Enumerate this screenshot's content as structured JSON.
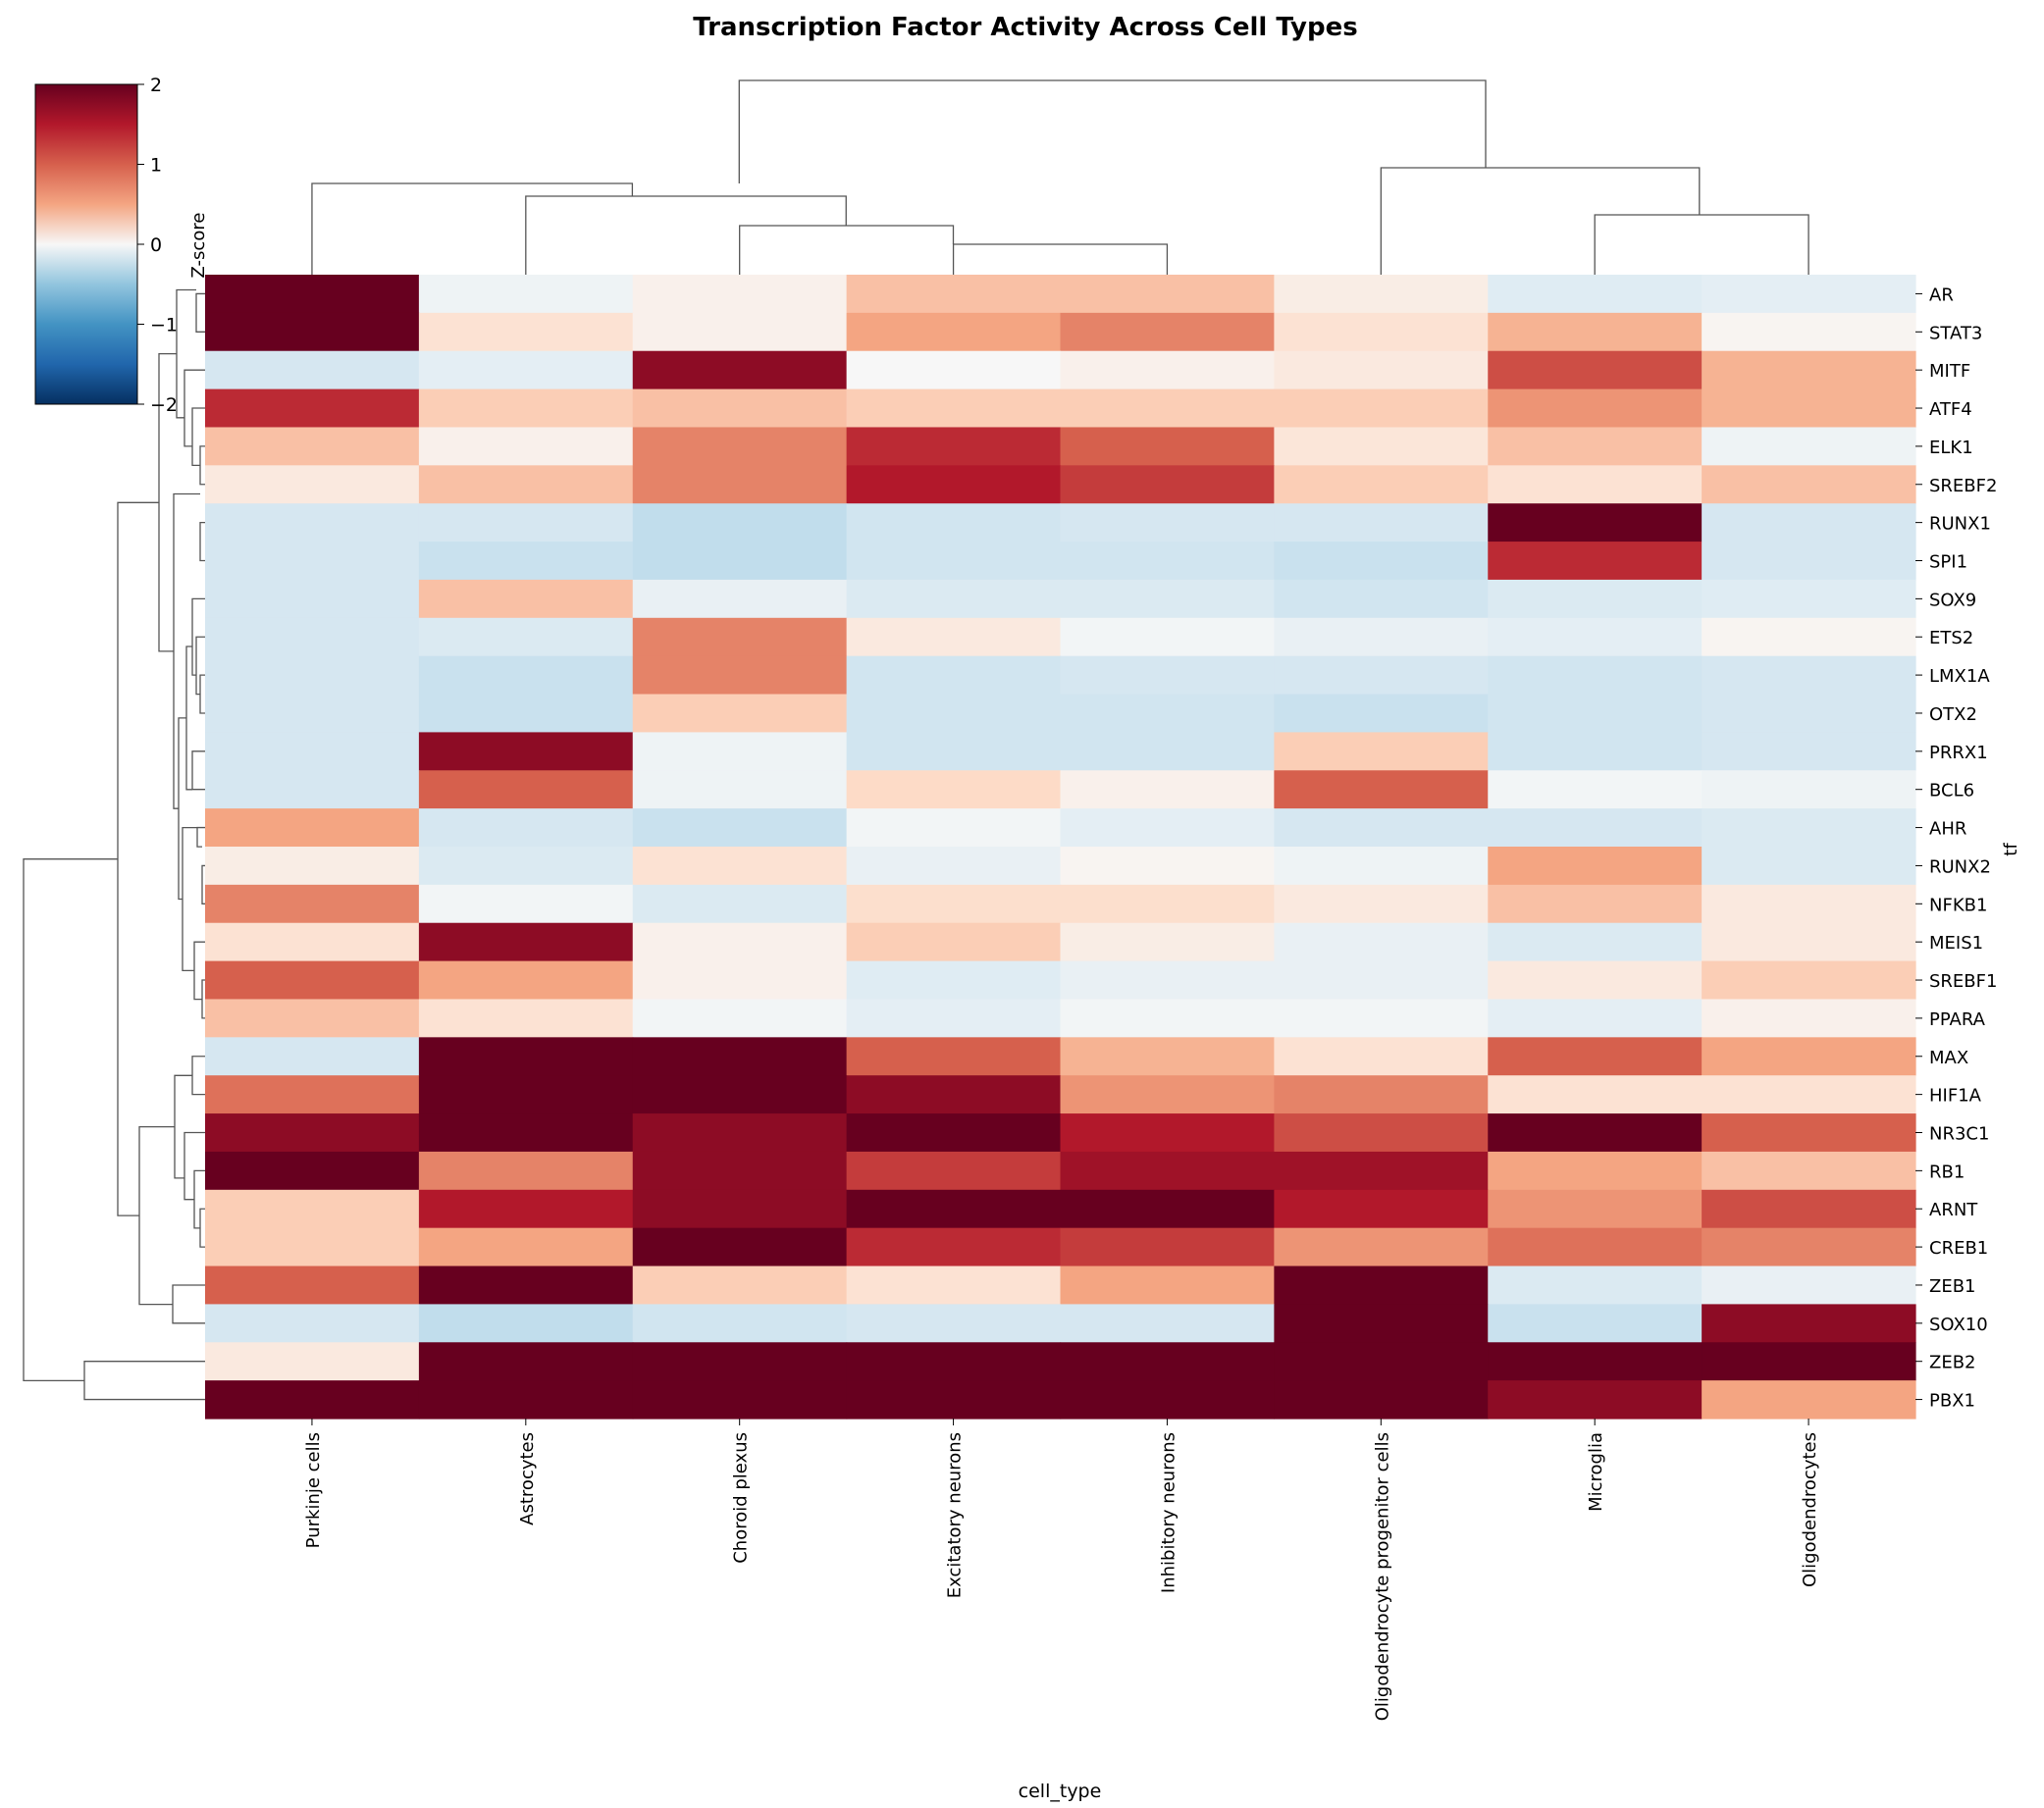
{
  "chart_data": {
    "type": "heatmap",
    "title": "Transcription Factor Activity Across Cell Types",
    "xlabel": "cell_type",
    "ylabel": "tf",
    "colorbar": {
      "label": "Z-score",
      "range": [
        -2,
        2
      ],
      "ticks": [
        "2",
        "1",
        "0",
        "−1",
        "−2"
      ],
      "colormap": "RdBu_r"
    },
    "columns": [
      "Purkinje cells",
      "Astrocytes",
      "Choroid plexus",
      "Excitatory neurons",
      "Inhibitory neurons",
      "Oligodendrocyte progenitor cells",
      "Microglia",
      "Oligodendrocytes"
    ],
    "rows": [
      "AR",
      "STAT3",
      "MITF",
      "ATF4",
      "ELK1",
      "SREBF2",
      "RUNX1",
      "SPI1",
      "SOX9",
      "ETS2",
      "LMX1A",
      "OTX2",
      "PRRX1",
      "BCL6",
      "AHR",
      "RUNX2",
      "NFKB1",
      "MEIS1",
      "SREBF1",
      "PPARA",
      "MAX",
      "HIF1A",
      "NR3C1",
      "RB1",
      "ARNT",
      "CREB1",
      "ZEB1",
      "SOX10",
      "ZEB2",
      "PBX1"
    ],
    "values": [
      [
        2.0,
        -0.1,
        0.1,
        0.6,
        0.6,
        0.15,
        -0.25,
        -0.2
      ],
      [
        2.0,
        0.3,
        0.1,
        0.8,
        1.0,
        0.3,
        0.7,
        0.05
      ],
      [
        -0.35,
        -0.2,
        1.8,
        0.0,
        0.1,
        0.2,
        1.3,
        0.7
      ],
      [
        1.5,
        0.5,
        0.6,
        0.5,
        0.5,
        0.5,
        0.9,
        0.7
      ],
      [
        0.6,
        0.1,
        1.0,
        1.5,
        1.2,
        0.25,
        0.6,
        -0.1
      ],
      [
        0.2,
        0.6,
        1.0,
        1.6,
        1.4,
        0.5,
        0.3,
        0.6
      ],
      [
        -0.35,
        -0.35,
        -0.5,
        -0.4,
        -0.35,
        -0.35,
        2.2,
        -0.35
      ],
      [
        -0.35,
        -0.45,
        -0.5,
        -0.4,
        -0.4,
        -0.45,
        1.5,
        -0.35
      ],
      [
        -0.35,
        0.6,
        -0.15,
        -0.3,
        -0.3,
        -0.4,
        -0.3,
        -0.25
      ],
      [
        -0.35,
        -0.3,
        1.0,
        0.2,
        -0.05,
        -0.15,
        -0.2,
        0.05
      ],
      [
        -0.35,
        -0.45,
        1.0,
        -0.4,
        -0.35,
        -0.35,
        -0.4,
        -0.35
      ],
      [
        -0.35,
        -0.45,
        0.5,
        -0.4,
        -0.4,
        -0.45,
        -0.4,
        -0.35
      ],
      [
        -0.35,
        1.8,
        -0.1,
        -0.4,
        -0.4,
        0.5,
        -0.4,
        -0.35
      ],
      [
        -0.35,
        1.2,
        -0.1,
        0.4,
        0.1,
        1.2,
        -0.05,
        -0.1
      ],
      [
        0.8,
        -0.35,
        -0.45,
        -0.05,
        -0.2,
        -0.35,
        -0.35,
        -0.3
      ],
      [
        0.15,
        -0.3,
        0.3,
        -0.15,
        0.05,
        -0.1,
        0.8,
        -0.3
      ],
      [
        1.0,
        -0.05,
        -0.3,
        0.35,
        0.35,
        0.2,
        0.6,
        0.2
      ],
      [
        0.3,
        1.8,
        0.1,
        0.5,
        0.15,
        -0.15,
        -0.3,
        0.2
      ],
      [
        1.2,
        0.8,
        0.1,
        -0.25,
        -0.15,
        -0.15,
        0.2,
        0.5
      ],
      [
        0.6,
        0.3,
        -0.05,
        -0.2,
        -0.05,
        -0.05,
        -0.2,
        0.1
      ],
      [
        -0.35,
        2.2,
        2.1,
        1.2,
        0.7,
        0.3,
        1.2,
        0.8
      ],
      [
        1.1,
        2.2,
        2.0,
        1.8,
        0.9,
        1.0,
        0.3,
        0.3
      ],
      [
        1.8,
        2.2,
        1.8,
        2.2,
        1.6,
        1.3,
        2.2,
        1.2
      ],
      [
        2.0,
        1.0,
        1.8,
        1.4,
        1.7,
        1.7,
        0.8,
        0.6
      ],
      [
        0.5,
        1.6,
        1.8,
        2.2,
        2.2,
        1.6,
        0.9,
        1.3
      ],
      [
        0.5,
        0.8,
        2.0,
        1.5,
        1.4,
        0.9,
        1.1,
        1.0
      ],
      [
        1.2,
        2.2,
        0.5,
        0.3,
        0.8,
        2.2,
        -0.3,
        -0.15
      ],
      [
        -0.35,
        -0.5,
        -0.4,
        -0.35,
        -0.35,
        2.2,
        -0.45,
        1.8
      ],
      [
        0.2,
        2.2,
        2.2,
        2.2,
        2.2,
        2.2,
        2.2,
        2.2
      ],
      [
        2.2,
        2.2,
        2.2,
        2.2,
        2.2,
        2.2,
        1.8,
        0.8
      ]
    ]
  }
}
